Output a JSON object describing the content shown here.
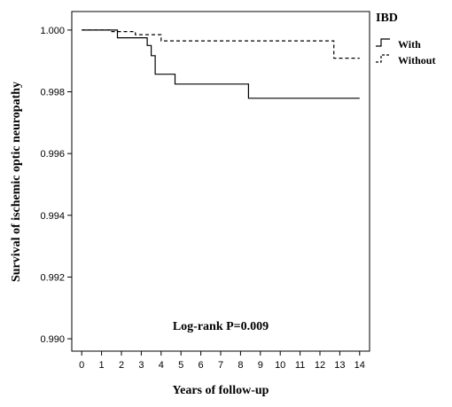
{
  "chart_data": {
    "type": "line",
    "title": "",
    "xlabel": "Years of follow-up",
    "ylabel": "Survival of ischemic optic neuropathy",
    "xlim": [
      -0.5,
      14.5
    ],
    "ylim": [
      0.9896,
      1.0006
    ],
    "x_ticks": [
      "0",
      "1",
      "2",
      "3",
      "4",
      "5",
      "6",
      "7",
      "8",
      "9",
      "10",
      "11",
      "12",
      "13",
      "14"
    ],
    "y_ticks": [
      "0.990",
      "0.992",
      "0.994",
      "0.996",
      "0.998",
      "1.000"
    ],
    "grid": false,
    "legend": {
      "title": "IBD",
      "placement": "top-right-outside"
    },
    "annotation": "Log-rank P=0.009",
    "series": [
      {
        "name": "With",
        "style": "solid",
        "color": "#000000",
        "x": [
          0,
          1.8,
          3.3,
          3.5,
          3.7,
          4.7,
          8.4,
          14
        ],
        "y": [
          1.0,
          0.99975,
          0.9995,
          0.99917,
          0.99857,
          0.99825,
          0.99779,
          0.99779
        ]
      },
      {
        "name": "Without",
        "style": "dashed",
        "color": "#000000",
        "x": [
          0,
          1.4,
          2.7,
          4.0,
          12.7,
          14
        ],
        "y": [
          1.0,
          0.99995,
          0.99985,
          0.99965,
          0.99909,
          0.99909
        ]
      }
    ]
  }
}
